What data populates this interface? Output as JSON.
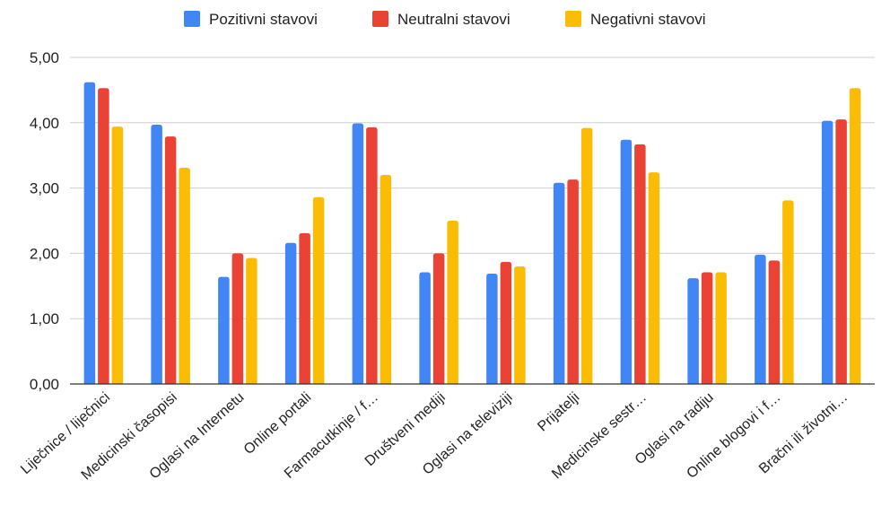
{
  "chart_data": {
    "type": "bar",
    "categories": [
      "Liječnice / liječnici",
      "Medicinski časopisi",
      "Oglasi na Internetu",
      "Online portali",
      "Farmacutkinje / f…",
      "Društveni mediji",
      "Oglasi na televiziji",
      "Prijatelji",
      "Medicinske sestr…",
      "Oglasi na radiju",
      "Online blogovi i f…",
      "Bračni ili životni…"
    ],
    "series": [
      {
        "name": "Pozitivni stavovi",
        "color": "#4285f4",
        "values": [
          4.62,
          3.97,
          1.64,
          2.16,
          3.99,
          1.71,
          1.69,
          3.08,
          3.74,
          1.62,
          1.98,
          4.03
        ]
      },
      {
        "name": "Neutralni stavovi",
        "color": "#ea4335",
        "values": [
          4.53,
          3.79,
          2.0,
          2.31,
          3.93,
          2.0,
          1.87,
          3.13,
          3.67,
          1.71,
          1.89,
          4.05
        ]
      },
      {
        "name": "Negativni stavovi",
        "color": "#fbbc04",
        "values": [
          3.94,
          3.31,
          1.93,
          2.86,
          3.2,
          2.5,
          1.8,
          3.92,
          3.24,
          1.71,
          2.81,
          4.53
        ]
      }
    ],
    "yticks": [
      "0,00",
      "1,00",
      "2,00",
      "3,00",
      "4,00",
      "5,00"
    ],
    "ylim": [
      0,
      5
    ],
    "grid": true,
    "legend_position": "top"
  }
}
